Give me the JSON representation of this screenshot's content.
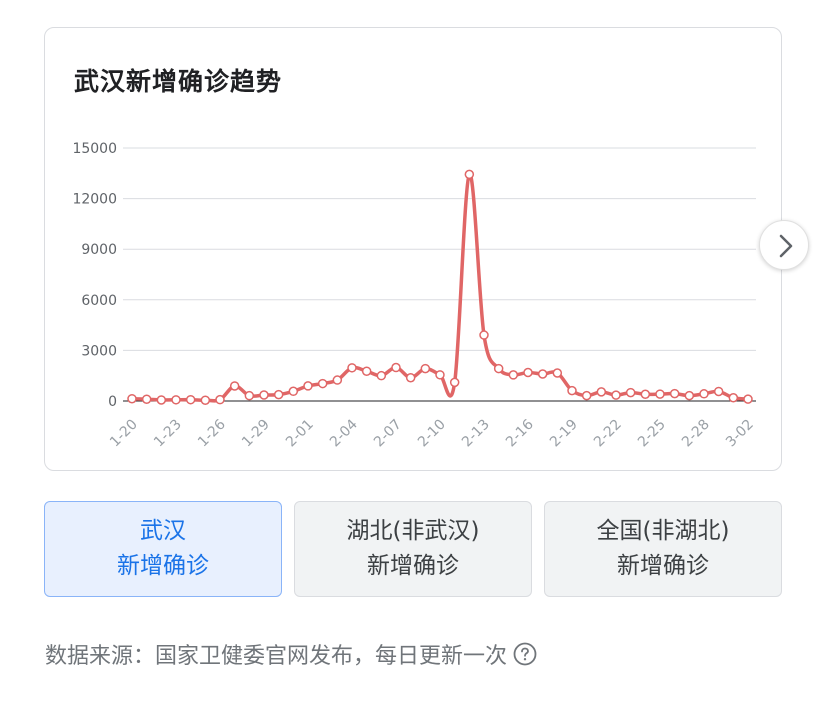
{
  "card": {
    "title": "武汉新增确诊趋势"
  },
  "chart_data": {
    "type": "line",
    "title": "武汉新增确诊趋势",
    "xlabel": "",
    "ylabel": "",
    "ylim": [
      0,
      15000
    ],
    "yticks": [
      "15000",
      "12000",
      "9000",
      "6000",
      "3000",
      "0"
    ],
    "ytick_values": [
      15000,
      12000,
      9000,
      6000,
      3000,
      0
    ],
    "xtick_labels": [
      "1-20",
      "1-23",
      "1-26",
      "1-29",
      "2-01",
      "2-04",
      "2-07",
      "2-10",
      "2-13",
      "2-16",
      "2-19",
      "2-22",
      "2-25",
      "2-28",
      "3-02"
    ],
    "grid": true,
    "color": "#e06666",
    "x": [
      "1-20",
      "1-21",
      "1-22",
      "1-23",
      "1-24",
      "1-25",
      "1-26",
      "1-27",
      "1-28",
      "1-29",
      "1-30",
      "1-31",
      "2-01",
      "2-02",
      "2-03",
      "2-04",
      "2-05",
      "2-06",
      "2-07",
      "2-08",
      "2-09",
      "2-10",
      "2-11",
      "2-12",
      "2-13",
      "2-14",
      "2-15",
      "2-16",
      "2-17",
      "2-18",
      "2-19",
      "2-20",
      "2-21",
      "2-22",
      "2-23",
      "2-24",
      "2-25",
      "2-26",
      "2-27",
      "2-28",
      "2-29",
      "3-01",
      "3-02"
    ],
    "values": [
      136,
      105,
      62,
      70,
      77,
      46,
      80,
      892,
      315,
      356,
      378,
      576,
      894,
      1033,
      1242,
      1967,
      1766,
      1501,
      1985,
      1379,
      1921,
      1552,
      1104,
      13436,
      3910,
      1923,
      1548,
      1690,
      1600,
      1660,
      615,
      319,
      541,
      348,
      499,
      401,
      409,
      439,
      318,
      427,
      565,
      193,
      111
    ]
  },
  "next_button": {
    "icon": "chevron-right-icon"
  },
  "tabs": [
    {
      "line1": "武汉",
      "line2": "新增确诊",
      "active": true
    },
    {
      "line1": "湖北(非武汉)",
      "line2": "新增确诊",
      "active": false
    },
    {
      "line1": "全国(非湖北)",
      "line2": "新增确诊",
      "active": false
    }
  ],
  "footer": {
    "source_text": "数据来源：国家卫健委官网发布，每日更新一次",
    "help_icon": "question-circle-icon"
  }
}
